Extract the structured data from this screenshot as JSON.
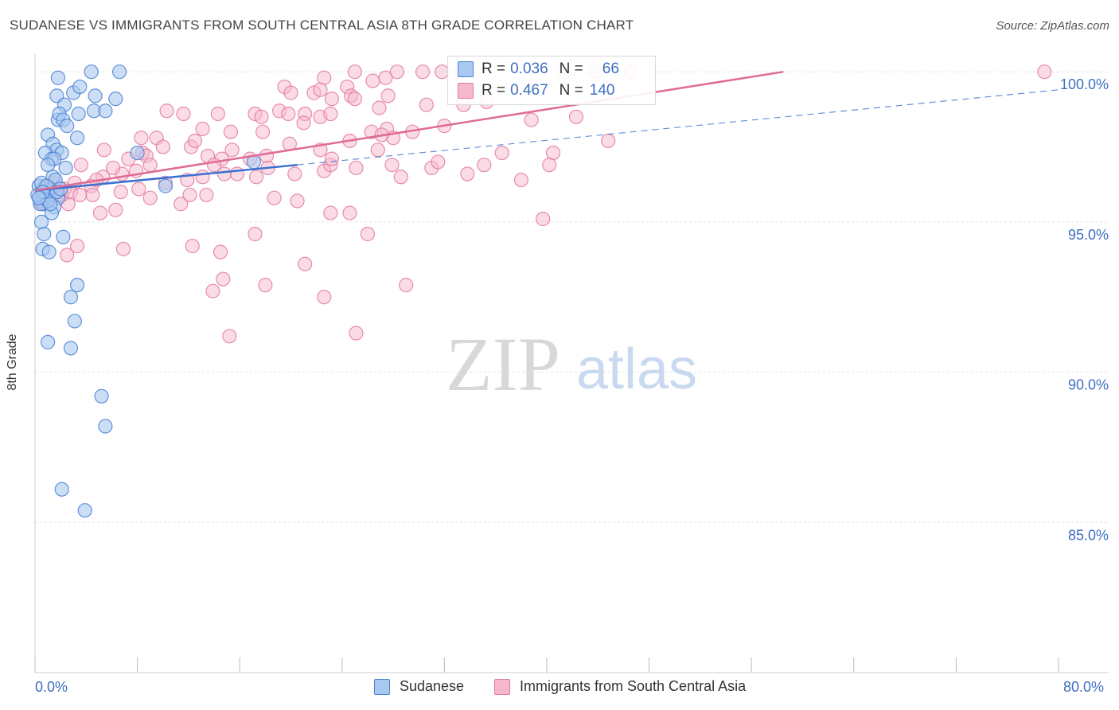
{
  "header": {
    "title": "SUDANESE VS IMMIGRANTS FROM SOUTH CENTRAL ASIA 8TH GRADE CORRELATION CHART",
    "source": "Source: ZipAtlas.com"
  },
  "watermark": {
    "zip": "ZIP",
    "atlas": "atlas"
  },
  "legend": {
    "series": [
      {
        "r_label": "R =",
        "r_value": "0.036",
        "n_label": "N =",
        "n_value": "66"
      },
      {
        "r_label": "R =",
        "r_value": "0.467",
        "n_label": "N =",
        "n_value": "140"
      }
    ]
  },
  "chart_data": {
    "type": "scatter",
    "ylabel": "8th Grade",
    "xlim": [
      0,
      80
    ],
    "ylim": [
      80,
      100.8
    ],
    "x_tick_labels": [
      "0.0%",
      "80.0%"
    ],
    "y_ticks": [
      100,
      95,
      90,
      85
    ],
    "y_tick_labels": [
      "100.0%",
      "95.0%",
      "90.0%",
      "85.0%"
    ],
    "grid": true,
    "colors": {
      "sudanese_fill": "#a9c8f0",
      "sudanese_stroke": "#4a80d4",
      "sudanese_line": "#3a70d0",
      "immigrants_fill": "#f7b8cc",
      "immigrants_stroke": "#e27aa0",
      "immigrants_line": "#e06b95",
      "tick_label": "#3f6fc2"
    },
    "series": [
      {
        "name": "Sudanese",
        "trend": {
          "x": [
            0,
            20.5
          ],
          "y": [
            96.05,
            96.9
          ]
        },
        "trend_extended": {
          "x": [
            20.5,
            80
          ],
          "y": [
            96.9,
            99.4
          ]
        },
        "points": [
          [
            1.8,
            99.8
          ],
          [
            4.4,
            100
          ],
          [
            6.6,
            100
          ],
          [
            1.7,
            99.2
          ],
          [
            3.0,
            99.3
          ],
          [
            3.5,
            99.5
          ],
          [
            4.7,
            99.2
          ],
          [
            6.3,
            99.1
          ],
          [
            2.3,
            98.9
          ],
          [
            4.6,
            98.7
          ],
          [
            5.5,
            98.7
          ],
          [
            1.8,
            98.4
          ],
          [
            1.9,
            98.6
          ],
          [
            2.2,
            98.4
          ],
          [
            2.5,
            98.2
          ],
          [
            3.4,
            98.6
          ],
          [
            1.0,
            97.9
          ],
          [
            1.4,
            97.6
          ],
          [
            1.7,
            97.4
          ],
          [
            2.1,
            97.3
          ],
          [
            0.8,
            97.3
          ],
          [
            1.3,
            97.1
          ],
          [
            3.3,
            97.8
          ],
          [
            1.5,
            97.1
          ],
          [
            1.0,
            96.9
          ],
          [
            2.4,
            96.8
          ],
          [
            8.0,
            97.3
          ],
          [
            17.1,
            97.0
          ],
          [
            1.4,
            96.5
          ],
          [
            1.6,
            96.4
          ],
          [
            0.6,
            96.1
          ],
          [
            0.9,
            96.0
          ],
          [
            1.1,
            95.9
          ],
          [
            1.8,
            95.8
          ],
          [
            0.4,
            95.7
          ],
          [
            0.7,
            95.6
          ],
          [
            1.5,
            95.5
          ],
          [
            1.3,
            95.3
          ],
          [
            0.5,
            95.0
          ],
          [
            0.7,
            94.6
          ],
          [
            2.2,
            94.5
          ],
          [
            0.6,
            94.1
          ],
          [
            1.1,
            94.0
          ],
          [
            3.3,
            92.9
          ],
          [
            2.8,
            92.5
          ],
          [
            3.1,
            91.7
          ],
          [
            1.0,
            91.0
          ],
          [
            2.8,
            90.8
          ],
          [
            5.2,
            89.2
          ],
          [
            5.5,
            88.2
          ],
          [
            2.1,
            86.1
          ],
          [
            3.9,
            85.4
          ],
          [
            10.2,
            96.2
          ],
          [
            0.3,
            96.2
          ],
          [
            0.8,
            95.9
          ],
          [
            1.2,
            96.1
          ],
          [
            0.5,
            96.3
          ],
          [
            0.9,
            96.2
          ],
          [
            1.7,
            96.0
          ],
          [
            0.4,
            95.6
          ],
          [
            1.0,
            95.7
          ],
          [
            0.2,
            95.9
          ],
          [
            2.0,
            96.1
          ],
          [
            1.2,
            95.6
          ],
          [
            0.6,
            96.0
          ],
          [
            0.3,
            95.8
          ]
        ]
      },
      {
        "name": "Immigrants from South Central Asia",
        "trend": {
          "x": [
            0,
            58.5
          ],
          "y": [
            96.05,
            100.0
          ]
        },
        "points": [
          [
            25,
            100
          ],
          [
            28.3,
            100
          ],
          [
            30.3,
            100
          ],
          [
            31.8,
            100
          ],
          [
            33.2,
            100
          ],
          [
            41.4,
            100
          ],
          [
            43.8,
            100
          ],
          [
            46.6,
            100
          ],
          [
            78.9,
            100
          ],
          [
            27.4,
            99.8
          ],
          [
            26.4,
            99.7
          ],
          [
            22.6,
            99.8
          ],
          [
            24.4,
            99.5
          ],
          [
            19.5,
            99.5
          ],
          [
            20.0,
            99.3
          ],
          [
            21.8,
            99.3
          ],
          [
            22.3,
            99.4
          ],
          [
            23.2,
            99.1
          ],
          [
            24.7,
            99.2
          ],
          [
            27.6,
            99.2
          ],
          [
            25.0,
            99.1
          ],
          [
            30.6,
            98.9
          ],
          [
            33.5,
            98.9
          ],
          [
            35.3,
            99.0
          ],
          [
            26.9,
            98.8
          ],
          [
            10.3,
            98.7
          ],
          [
            11.6,
            98.6
          ],
          [
            14.3,
            98.6
          ],
          [
            17.2,
            98.6
          ],
          [
            17.7,
            98.5
          ],
          [
            19.1,
            98.7
          ],
          [
            19.8,
            98.6
          ],
          [
            21.1,
            98.6
          ],
          [
            22.3,
            98.5
          ],
          [
            23.1,
            98.6
          ],
          [
            32.0,
            98.2
          ],
          [
            38.8,
            98.4
          ],
          [
            42.3,
            98.5
          ],
          [
            13.1,
            98.1
          ],
          [
            15.3,
            98.0
          ],
          [
            17.8,
            98.0
          ],
          [
            19.9,
            97.6
          ],
          [
            21.0,
            98.3
          ],
          [
            26.3,
            98.0
          ],
          [
            27.5,
            98.1
          ],
          [
            28.0,
            97.8
          ],
          [
            29.5,
            98.0
          ],
          [
            9.5,
            97.8
          ],
          [
            10.0,
            97.5
          ],
          [
            12.2,
            97.5
          ],
          [
            13.5,
            97.2
          ],
          [
            14.6,
            97.1
          ],
          [
            15.4,
            97.4
          ],
          [
            16.8,
            97.1
          ],
          [
            18.1,
            97.2
          ],
          [
            22.3,
            97.4
          ],
          [
            24.6,
            97.7
          ],
          [
            26.8,
            97.4
          ],
          [
            36.5,
            97.3
          ],
          [
            40.5,
            97.3
          ],
          [
            5.4,
            97.4
          ],
          [
            7.3,
            97.1
          ],
          [
            8.4,
            97.3
          ],
          [
            8.7,
            97.2
          ],
          [
            9.0,
            96.9
          ],
          [
            6.8,
            96.6
          ],
          [
            7.9,
            96.7
          ],
          [
            10.2,
            96.3
          ],
          [
            11.9,
            96.4
          ],
          [
            13.1,
            96.5
          ],
          [
            14.0,
            96.9
          ],
          [
            14.8,
            96.6
          ],
          [
            15.8,
            96.6
          ],
          [
            17.3,
            96.5
          ],
          [
            18.2,
            96.8
          ],
          [
            20.3,
            96.6
          ],
          [
            22.6,
            96.7
          ],
          [
            23.1,
            96.9
          ],
          [
            25.1,
            96.8
          ],
          [
            27.9,
            96.9
          ],
          [
            28.6,
            96.5
          ],
          [
            31.0,
            96.8
          ],
          [
            33.8,
            96.6
          ],
          [
            38.0,
            96.4
          ],
          [
            3.6,
            96.9
          ],
          [
            4.4,
            96.2
          ],
          [
            5.3,
            96.5
          ],
          [
            6.1,
            96.8
          ],
          [
            4.8,
            96.4
          ],
          [
            2.3,
            96.1
          ],
          [
            3.1,
            96.3
          ],
          [
            4.5,
            95.9
          ],
          [
            6.7,
            96.0
          ],
          [
            8.1,
            96.1
          ],
          [
            9.0,
            95.8
          ],
          [
            11.4,
            95.6
          ],
          [
            12.1,
            95.9
          ],
          [
            13.4,
            95.9
          ],
          [
            18.7,
            95.8
          ],
          [
            20.5,
            95.7
          ],
          [
            23.1,
            95.3
          ],
          [
            24.6,
            95.3
          ],
          [
            5.1,
            95.3
          ],
          [
            6.3,
            95.4
          ],
          [
            3.3,
            94.2
          ],
          [
            2.5,
            93.9
          ],
          [
            6.9,
            94.1
          ],
          [
            12.3,
            94.2
          ],
          [
            14.5,
            94.0
          ],
          [
            17.2,
            94.6
          ],
          [
            26.0,
            94.6
          ],
          [
            39.7,
            95.1
          ],
          [
            13.9,
            92.7
          ],
          [
            14.7,
            93.1
          ],
          [
            18.0,
            92.9
          ],
          [
            21.1,
            93.6
          ],
          [
            22.6,
            92.5
          ],
          [
            25.1,
            91.3
          ],
          [
            29.0,
            92.9
          ],
          [
            15.2,
            91.2
          ],
          [
            35.1,
            96.9
          ],
          [
            40.2,
            96.9
          ],
          [
            27.1,
            97.9
          ],
          [
            31.5,
            97.0
          ],
          [
            44.8,
            97.7
          ],
          [
            23.2,
            97.1
          ],
          [
            12.5,
            97.7
          ],
          [
            8.3,
            97.8
          ],
          [
            1.5,
            96.3
          ],
          [
            1.9,
            95.9
          ],
          [
            0.8,
            96.0
          ],
          [
            1.2,
            95.8
          ],
          [
            2.6,
            95.6
          ],
          [
            0.9,
            96.2
          ],
          [
            2.1,
            95.9
          ],
          [
            1.0,
            96.1
          ],
          [
            0.5,
            95.6
          ],
          [
            1.6,
            96.0
          ],
          [
            2.8,
            96.0
          ],
          [
            3.5,
            95.9
          ]
        ]
      }
    ]
  }
}
